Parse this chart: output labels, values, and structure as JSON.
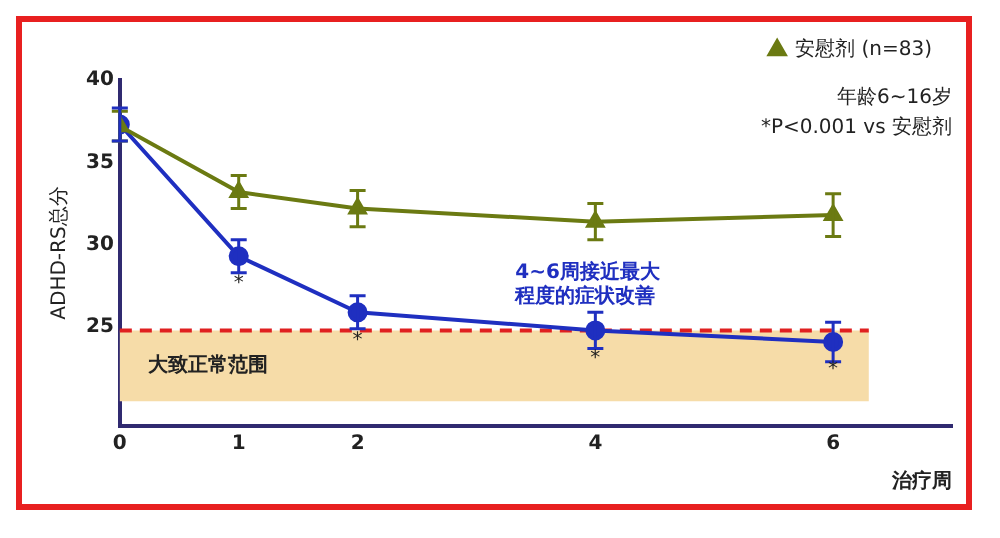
{
  "chart_data": {
    "type": "line",
    "xlabel": "治疗周",
    "ylabel": "ADHD-RS总分",
    "x": [
      0,
      1,
      2,
      4,
      6
    ],
    "xlim": [
      0,
      7
    ],
    "xticks": [
      0,
      1,
      2,
      4,
      6
    ],
    "ylim": [
      19,
      40
    ],
    "yticks": [
      25,
      30,
      35,
      40
    ],
    "series": [
      {
        "name": "安慰剂 (n=83)",
        "color": "#6b7a12",
        "marker": "triangle",
        "values": [
          37.2,
          33.2,
          32.2,
          31.4,
          31.8
        ],
        "errors": [
          0.9,
          1.0,
          1.1,
          1.1,
          1.3
        ]
      },
      {
        "color": "#1f2fc0",
        "marker": "circle",
        "values": [
          37.3,
          29.3,
          25.9,
          24.8,
          24.1
        ],
        "errors": [
          1.0,
          1.0,
          1.0,
          1.1,
          1.2
        ]
      }
    ],
    "ref_lines": [
      {
        "axis": "y",
        "value": 24.8,
        "color": "#e02020",
        "line_style": "dashed"
      }
    ],
    "bands": [
      {
        "axis": "y",
        "from": 20.5,
        "to": 24.8,
        "label": "大致正常范围",
        "color": "#f6dca8"
      }
    ],
    "annotations": [
      "年龄6~16岁",
      "*P<0.001 vs 安慰剂",
      {
        "text": "*",
        "x": 1,
        "y": 29.3
      },
      {
        "text": "*",
        "x": 2,
        "y": 25.9
      },
      {
        "text": "*",
        "x": 4,
        "y": 24.8
      },
      {
        "text": "*",
        "x": 6,
        "y": 24.1
      },
      {
        "text": "4~6周接近最大程度的症状改善",
        "x": 4,
        "y": 24.8
      }
    ],
    "grid": false,
    "legend": "top right",
    "line_style": "solid"
  }
}
